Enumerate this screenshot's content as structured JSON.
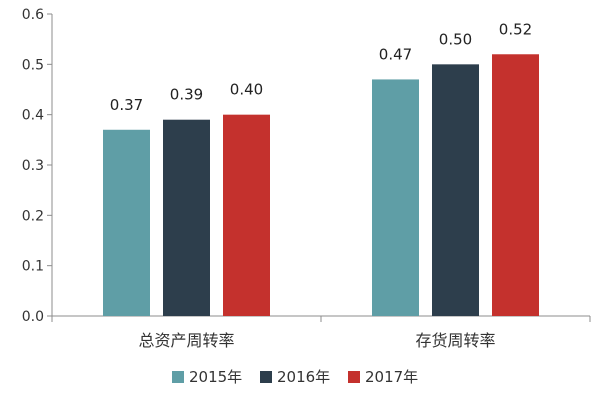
{
  "chart_data": {
    "type": "bar",
    "categories": [
      "总资产周转率",
      "存货周转率"
    ],
    "series": [
      {
        "name": "2015年",
        "values": [
          0.37,
          0.47
        ],
        "color": "#5f9ea6"
      },
      {
        "name": "2016年",
        "values": [
          0.39,
          0.5
        ],
        "color": "#2d3e4c"
      },
      {
        "name": "2017年",
        "values": [
          0.4,
          0.52
        ],
        "color": "#c4312d"
      }
    ],
    "data_labels": [
      [
        "0.37",
        "0.47"
      ],
      [
        "0.39",
        "0.50"
      ],
      [
        "0.40",
        "0.52"
      ]
    ],
    "ylim": [
      0,
      0.6
    ],
    "y_ticks": [
      "0.0",
      "0.1",
      "0.2",
      "0.3",
      "0.4",
      "0.5",
      "0.6"
    ],
    "title": "",
    "xlabel": "",
    "ylabel": "",
    "grid": false,
    "legend_position": "bottom-center"
  }
}
